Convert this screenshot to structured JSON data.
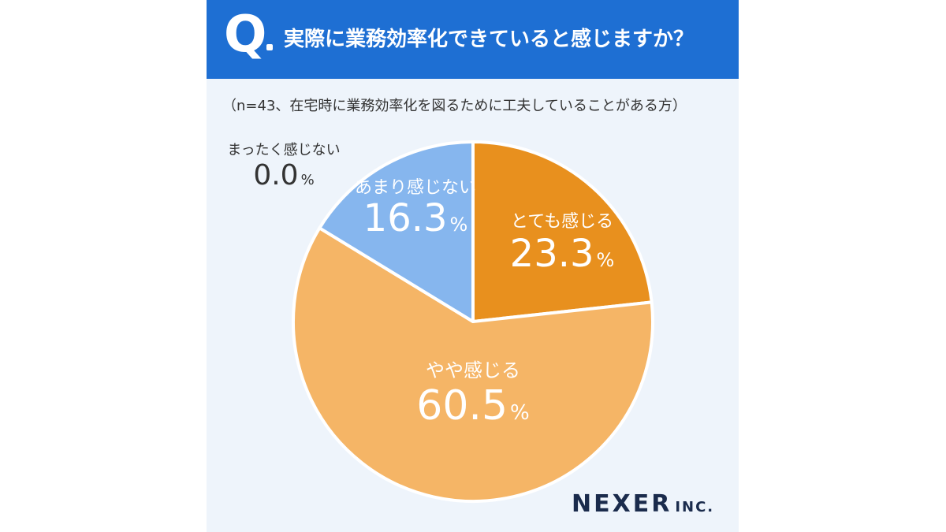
{
  "header": {
    "q_mark": "Q",
    "question": "実際に業務効率化できていると感じますか？"
  },
  "subtitle": "（n=43、在宅時に業務効率化を図るために工夫していることがある方）",
  "chart_data": {
    "type": "pie",
    "slices": [
      {
        "label": "とても感じる",
        "value": 23.3,
        "display": "23.3",
        "unit": "%",
        "color": "#e8901e",
        "label_color": "#ffffff"
      },
      {
        "label": "やや感じる",
        "value": 60.5,
        "display": "60.5",
        "unit": "%",
        "color": "#f5b566",
        "label_color": "#ffffff"
      },
      {
        "label": "あまり感じない",
        "value": 16.3,
        "display": "16.3",
        "unit": "%",
        "color": "#86b6ee",
        "label_color": "#ffffff"
      },
      {
        "label": "まったく感じない",
        "value": 0.0,
        "display": "0.0",
        "unit": "%",
        "color": "#86b6ee",
        "label_color": "#333333"
      }
    ]
  },
  "logo": {
    "main": "NEXER",
    "suffix": "INC."
  }
}
